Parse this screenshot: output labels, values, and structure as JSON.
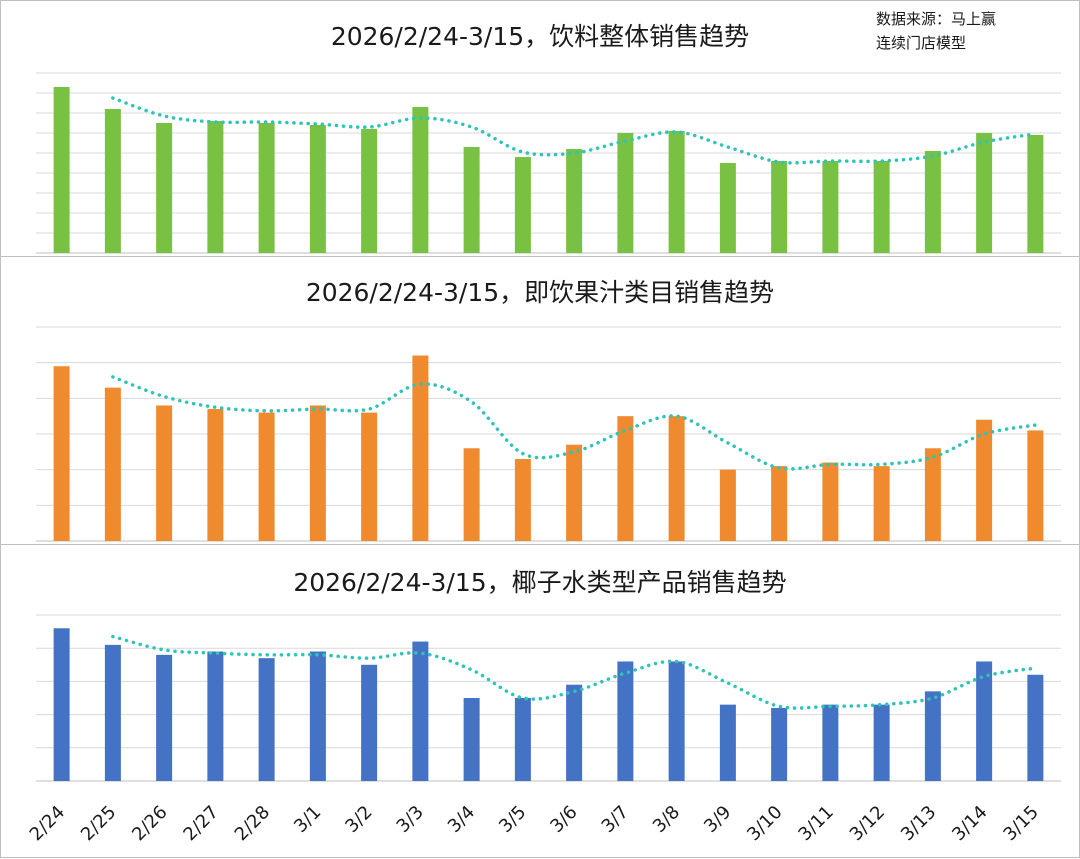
{
  "source_note": {
    "line1": "数据来源：马上赢",
    "line2": "连续门店模型"
  },
  "chart_data": [
    {
      "type": "bar",
      "title": "2026/2/24-3/15，饮料整体销售趋势",
      "categories": [
        "2/24",
        "2/25",
        "2/26",
        "2/27",
        "2/28",
        "3/1",
        "3/2",
        "3/3",
        "3/4",
        "3/5",
        "3/6",
        "3/7",
        "3/8",
        "3/9",
        "3/10",
        "3/11",
        "3/12",
        "3/13",
        "3/14",
        "3/15"
      ],
      "series": [
        {
          "values": [
            8.3,
            7.2,
            6.5,
            6.6,
            6.5,
            6.4,
            6.2,
            7.3,
            5.3,
            4.8,
            5.2,
            6.0,
            6.1,
            4.5,
            4.6,
            4.6,
            4.6,
            5.1,
            6.0,
            5.9
          ],
          "color": "#79C143"
        }
      ],
      "trendline": {
        "type": "moving-average",
        "period": 2,
        "color": "#2EC4B6",
        "style": "dotted"
      },
      "axis": {
        "ylabels_shown": false,
        "gridlines": 9,
        "grid": true
      },
      "legend": "none"
    },
    {
      "type": "bar",
      "title": "2026/2/24-3/15，即饮果汁类目销售趋势",
      "categories": [
        "2/24",
        "2/25",
        "2/26",
        "2/27",
        "2/28",
        "3/1",
        "3/2",
        "3/3",
        "3/4",
        "3/5",
        "3/6",
        "3/7",
        "3/8",
        "3/9",
        "3/10",
        "3/11",
        "3/12",
        "3/13",
        "3/14",
        "3/15"
      ],
      "series": [
        {
          "values": [
            4.9,
            4.3,
            3.8,
            3.7,
            3.6,
            3.8,
            3.6,
            5.2,
            2.6,
            2.3,
            2.7,
            3.5,
            3.5,
            2.0,
            2.1,
            2.2,
            2.1,
            2.6,
            3.4,
            3.1
          ],
          "color": "#F08A2E"
        }
      ],
      "trendline": {
        "type": "moving-average",
        "period": 2,
        "color": "#2EC4B6",
        "style": "dotted"
      },
      "axis": {
        "ylabels_shown": false,
        "gridlines": 6,
        "grid": true
      },
      "legend": "none"
    },
    {
      "type": "bar",
      "title": "2026/2/24-3/15，椰子水类型产品销售趋势",
      "categories": [
        "2/24",
        "2/25",
        "2/26",
        "2/27",
        "2/28",
        "3/1",
        "3/2",
        "3/3",
        "3/4",
        "3/5",
        "3/6",
        "3/7",
        "3/8",
        "3/9",
        "3/10",
        "3/11",
        "3/12",
        "3/13",
        "3/14",
        "3/15"
      ],
      "series": [
        {
          "values": [
            4.6,
            4.1,
            3.8,
            3.9,
            3.7,
            3.9,
            3.5,
            4.2,
            2.5,
            2.5,
            2.9,
            3.6,
            3.6,
            2.3,
            2.2,
            2.3,
            2.3,
            2.7,
            3.6,
            3.2
          ],
          "color": "#4472C4"
        }
      ],
      "trendline": {
        "type": "moving-average",
        "period": 2,
        "color": "#2EC4B6",
        "style": "dotted"
      },
      "axis": {
        "ylabels_shown": false,
        "gridlines": 5,
        "grid": true
      },
      "legend": "none"
    }
  ]
}
